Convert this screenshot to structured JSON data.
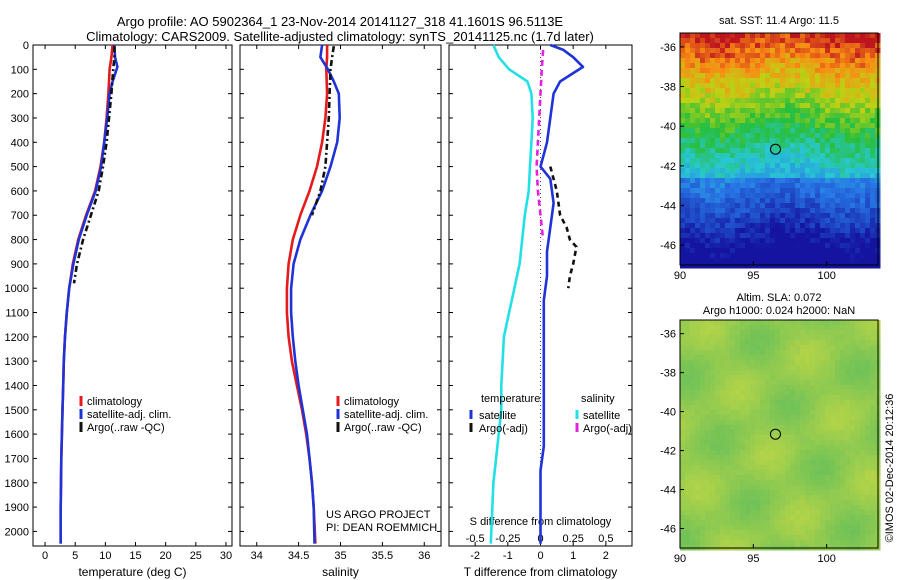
{
  "header": {
    "title_line1": "Argo profile: AO 5902364_1 23-Nov-2014 20141127_318 41.1601S 96.5113E",
    "title_line2": "Climatology: CARS2009. Satellite-adjusted climatology: synTS_20141125.nc (1.7d later)"
  },
  "maps": {
    "sst_title": "sat. SST: 11.4 Argo: 11.5",
    "sla_title_line1": "Altim. SLA: 0.072",
    "sla_title_line2": "Argo h1000: 0.024 h2000: NaN",
    "lat_ticks": [
      "-36",
      "-38",
      "-40",
      "-42",
      "-44",
      "-46"
    ],
    "lon_ticks": [
      "90",
      "95",
      "100"
    ],
    "argo_position": {
      "lon": 96.51,
      "lat": -41.16
    },
    "credit": "©IMOS 02-Dec-2014 20:12:36"
  },
  "chart_data": [
    {
      "type": "line",
      "xlabel": "temperature (deg C)",
      "ylabel": "",
      "xlim": [
        -2,
        31
      ],
      "ylim": [
        2060,
        0
      ],
      "xticks": [
        "0",
        "5",
        "10",
        "15",
        "20",
        "25",
        "30"
      ],
      "yticks": [
        "0",
        "100",
        "200",
        "300",
        "400",
        "500",
        "600",
        "700",
        "800",
        "900",
        "1000",
        "1100",
        "1200",
        "1300",
        "1400",
        "1500",
        "1600",
        "1700",
        "1800",
        "1900",
        "2000"
      ],
      "legend": [
        "climatology",
        "satellite-adj. clim.",
        "Argo(..raw -QC)"
      ],
      "series": [
        {
          "name": "climatology",
          "color": "#e41a1c",
          "dash": "",
          "x": [
            11.2,
            11.0,
            10.7,
            10.5,
            10.2,
            9.8,
            9.2,
            8.3,
            6.8,
            5.5,
            4.6,
            4.0,
            3.6,
            3.3,
            3.1,
            3.0,
            2.9,
            2.8,
            2.7,
            2.65,
            2.6,
            2.6
          ],
          "y": [
            0,
            50,
            100,
            200,
            300,
            400,
            500,
            600,
            700,
            800,
            900,
            1000,
            1100,
            1200,
            1300,
            1400,
            1500,
            1600,
            1700,
            1800,
            1900,
            2050
          ]
        },
        {
          "name": "satellite-adj. clim.",
          "color": "#1f33d6",
          "dash": "",
          "x": [
            11.5,
            11.6,
            12.0,
            11.2,
            10.7,
            10.3,
            9.8,
            9.3,
            8.4,
            6.9,
            5.6,
            4.7,
            4.0,
            3.6,
            3.3,
            3.1,
            3.0,
            2.9,
            2.8,
            2.7,
            2.65,
            2.6,
            2.6
          ],
          "y": [
            0,
            50,
            90,
            150,
            200,
            300,
            400,
            500,
            600,
            700,
            800,
            900,
            1000,
            1100,
            1200,
            1300,
            1400,
            1500,
            1600,
            1700,
            1800,
            1900,
            2050
          ]
        },
        {
          "name": "Argo(..raw -QC)",
          "color": "#111111",
          "dash": "6,3,2,3",
          "x": [
            11.5,
            11.5,
            11.3,
            11.0,
            10.6,
            10.2,
            9.6,
            8.9,
            7.6,
            6.3,
            5.3,
            4.8
          ],
          "y": [
            5,
            50,
            100,
            200,
            300,
            400,
            500,
            600,
            700,
            800,
            900,
            980
          ]
        }
      ]
    },
    {
      "type": "line",
      "xlabel": "salinity",
      "ylabel": "",
      "xlim": [
        33.8,
        36.2
      ],
      "ylim": [
        2060,
        0
      ],
      "xticks": [
        "34",
        "34.5",
        "35",
        "35.5",
        "36"
      ],
      "legend": [
        "climatology",
        "satellite-adj. clim.",
        "Argo(..raw -QC)"
      ],
      "annotation_line1": "US ARGO PROJECT",
      "annotation_line2": "PI: DEAN ROEMMICH",
      "series": [
        {
          "name": "climatology",
          "color": "#e41a1c",
          "dash": "",
          "x": [
            34.84,
            34.84,
            34.83,
            34.84,
            34.82,
            34.78,
            34.72,
            34.63,
            34.52,
            34.43,
            34.38,
            34.36,
            34.36,
            34.38,
            34.42,
            34.48,
            34.54,
            34.59,
            34.63,
            34.66,
            34.68,
            34.7
          ],
          "y": [
            0,
            50,
            100,
            200,
            300,
            400,
            500,
            600,
            700,
            800,
            900,
            1000,
            1100,
            1200,
            1300,
            1400,
            1500,
            1600,
            1700,
            1800,
            1900,
            2050
          ]
        },
        {
          "name": "satellite-adj. clim.",
          "color": "#1f33d6",
          "dash": "",
          "x": [
            34.78,
            34.76,
            34.85,
            34.92,
            34.98,
            34.99,
            34.96,
            34.88,
            34.78,
            34.64,
            34.52,
            34.44,
            34.41,
            34.41,
            34.43,
            34.46,
            34.5,
            34.55,
            34.6,
            34.63,
            34.66,
            34.68,
            34.69
          ],
          "y": [
            0,
            50,
            100,
            150,
            200,
            300,
            400,
            500,
            600,
            700,
            800,
            900,
            1000,
            1100,
            1200,
            1300,
            1400,
            1500,
            1600,
            1700,
            1800,
            1900,
            2050
          ]
        },
        {
          "name": "Argo(..raw -QC)",
          "color": "#111111",
          "dash": "6,3,2,3",
          "x": [
            34.92,
            34.9,
            34.88,
            34.87,
            34.86,
            34.84,
            34.82,
            34.76,
            34.66
          ],
          "y": [
            5,
            50,
            100,
            200,
            300,
            400,
            500,
            600,
            700
          ]
        }
      ]
    },
    {
      "type": "line",
      "xlabel": "T difference from climatology",
      "x2label": "S difference from climatology",
      "ylabel": "",
      "xlim": [
        -2.8,
        2.8
      ],
      "ylim": [
        2060,
        0
      ],
      "xticks": [
        "-2",
        "-1",
        "0",
        "1",
        "2"
      ],
      "x2ticks": [
        "-0.5",
        "-0.25",
        "0",
        "0.25",
        "0.5"
      ],
      "legend_temperature_title": "temperature",
      "legend_salinity_title": "salinity",
      "legend_temperature": [
        "satellite",
        "Argo(-adj)"
      ],
      "legend_salinity": [
        "satellite",
        "Argo(-adj)"
      ],
      "series": [
        {
          "name": "satellite",
          "color": "#1f33d6",
          "dash": "",
          "x": [
            0.3,
            0.7,
            1.0,
            1.3,
            0.6,
            0.4,
            0.3,
            0.2,
            0.1,
            0.0,
            0.3,
            0.4,
            0.3,
            0.2,
            0.2,
            0.1,
            0.1,
            0.1,
            0.1,
            0.1,
            0.1,
            0.1,
            0.0,
            0.0,
            0.0
          ],
          "y": [
            0,
            20,
            50,
            90,
            150,
            200,
            300,
            400,
            450,
            500,
            550,
            650,
            750,
            850,
            950,
            1050,
            1150,
            1250,
            1350,
            1450,
            1550,
            1650,
            1750,
            1850,
            2050
          ]
        },
        {
          "name": "Argo(-adj)",
          "color": "#111111",
          "dash": "5,4",
          "x": [
            0.3,
            0.5,
            0.6,
            0.8,
            0.9,
            1.1,
            1.0,
            0.9,
            0.85
          ],
          "y": [
            500,
            600,
            700,
            750,
            800,
            830,
            900,
            950,
            1000
          ]
        },
        {
          "name": "satellite",
          "color": "#22e0e6",
          "dash": "",
          "x": [
            -0.36,
            -0.32,
            -0.24,
            -0.1,
            -0.07,
            -0.06,
            -0.07,
            -0.08,
            -0.09,
            -0.12,
            -0.14,
            -0.16,
            -0.2,
            -0.24,
            -0.28,
            -0.3,
            -0.3,
            -0.32,
            -0.34,
            -0.36,
            -0.38
          ],
          "y": [
            0,
            50,
            100,
            150,
            200,
            300,
            400,
            500,
            600,
            700,
            800,
            900,
            1000,
            1100,
            1200,
            1400,
            1500,
            1600,
            1700,
            1800,
            2050
          ]
        },
        {
          "name": "Argo(-adj)",
          "color": "#e024e0",
          "dash": "6,4",
          "x": [
            0.02,
            0.01,
            0.0,
            -0.01,
            -0.02,
            -0.03,
            -0.02,
            0.0,
            0.02
          ],
          "y": [
            20,
            100,
            200,
            300,
            400,
            500,
            600,
            700,
            800
          ]
        }
      ]
    }
  ]
}
